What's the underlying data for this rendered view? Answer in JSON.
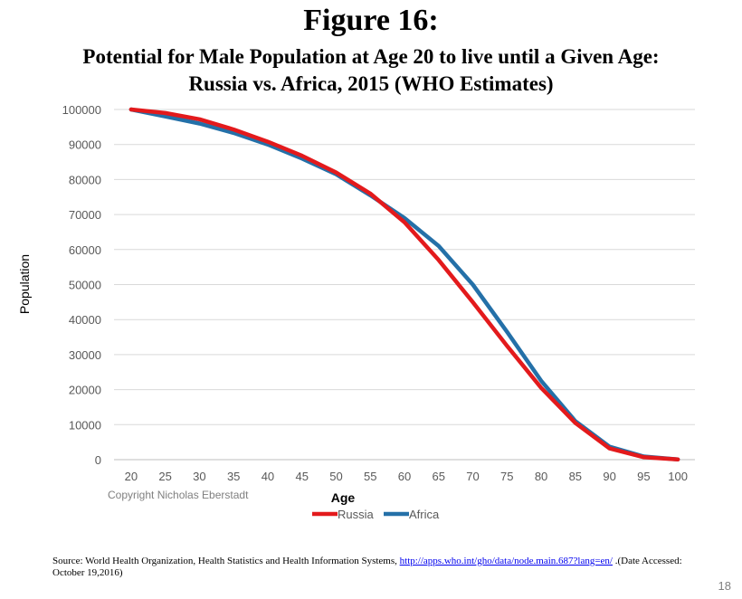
{
  "figure_label": "Figure 16:",
  "subtitle_line1": "Potential for Male Population at Age 20 to live until a Given Age:",
  "subtitle_line2": "Russia vs. Africa,  2015 (WHO Estimates)",
  "copyright": "Copyright Nicholas Eberstadt",
  "source": {
    "prefix": "Source: World Health Organization, Health Statistics and Health Information Systems, ",
    "link": "http://apps.who.int/gho/data/node.main.687?lang=en/",
    "suffix": " .(Date Accessed: October 19,2016)"
  },
  "page_number": "18",
  "colors": {
    "Russia": "#e31a1c",
    "Africa": "#2470a8"
  },
  "chart_data": {
    "type": "line",
    "xlabel": "Age",
    "ylabel": "Population",
    "x": [
      20,
      25,
      30,
      35,
      40,
      45,
      50,
      55,
      60,
      65,
      70,
      75,
      80,
      85,
      90,
      95,
      100
    ],
    "ylim": [
      0,
      100000
    ],
    "yticks": [
      0,
      10000,
      20000,
      30000,
      40000,
      50000,
      60000,
      70000,
      80000,
      90000,
      100000
    ],
    "grid": true,
    "legend_position": "bottom",
    "series": [
      {
        "name": "Russia",
        "values": [
          100000,
          99000,
          97200,
          94300,
          90800,
          86800,
          82000,
          76000,
          67800,
          57000,
          45000,
          32500,
          20500,
          10500,
          3200,
          700,
          50
        ]
      },
      {
        "name": "Africa",
        "values": [
          100000,
          98000,
          96000,
          93300,
          90000,
          86000,
          81500,
          75500,
          69000,
          61000,
          50000,
          36500,
          22500,
          11000,
          3700,
          900,
          80
        ]
      }
    ]
  }
}
